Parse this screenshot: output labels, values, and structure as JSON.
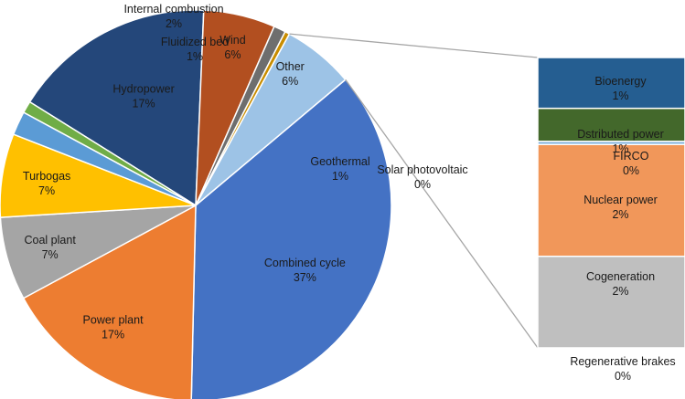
{
  "chart_data": {
    "type": "pie",
    "subtype": "bar-of-pie",
    "main_slices": [
      {
        "label": "Hydropower",
        "pct_label": "17%",
        "value": 17,
        "color": "#24477a",
        "text_color": "#1a1a1a"
      },
      {
        "label": "Wind",
        "pct_label": "6%",
        "value": 6,
        "color": "#b24f20",
        "text_color": "#1a1a1a"
      },
      {
        "label": "Geothermal",
        "pct_label": "1%",
        "value": 1,
        "color": "#6e6e6e",
        "text_color": "#1a1a1a"
      },
      {
        "label": "Solar photovoltaic",
        "pct_label": "0%",
        "value": 0.4,
        "color": "#c98d00",
        "text_color": "#1a1a1a"
      },
      {
        "label": "Other",
        "pct_label": "6%",
        "value": 6,
        "color": "#9dc3e6",
        "text_color": "#1a1a1a"
      },
      {
        "label": "Combined cycle",
        "pct_label": "37%",
        "value": 37,
        "color": "#4472c4",
        "text_color": "#1a1a1a"
      },
      {
        "label": "Power plant",
        "pct_label": "17%",
        "value": 17,
        "color": "#ed7d31",
        "text_color": "#1a1a1a"
      },
      {
        "label": "Coal plant",
        "pct_label": "7%",
        "value": 7,
        "color": "#a5a5a5",
        "text_color": "#1a1a1a"
      },
      {
        "label": "Turbogas",
        "pct_label": "7%",
        "value": 7,
        "color": "#ffc000",
        "text_color": "#1a1a1a"
      },
      {
        "label": "Internal combustion",
        "pct_label": "2%",
        "value": 2,
        "color": "#5b9bd5",
        "text_color": "#1a1a1a"
      },
      {
        "label": "Fluidized bed",
        "pct_label": "1%",
        "value": 1,
        "color": "#70ad47",
        "text_color": "#1a1a1a"
      }
    ],
    "bar_segments": [
      {
        "label": "Bioenergy",
        "pct_label": "1%",
        "value": 1.0,
        "color": "#255e91"
      },
      {
        "label": "Dstributed power",
        "pct_label": "1%",
        "value": 0.65,
        "color": "#43682b"
      },
      {
        "label": "FIRCO",
        "pct_label": "0%",
        "value": 0.06,
        "color": "#7cafdd"
      },
      {
        "label": "Nuclear power",
        "pct_label": "2%",
        "value": 2.2,
        "color": "#f1975a"
      },
      {
        "label": "Cogeneration",
        "pct_label": "2%",
        "value": 1.8,
        "color": "#bfbfbf"
      },
      {
        "label": "Regenerative brakes",
        "pct_label": "0%",
        "value": 0.0,
        "color": "#d9d9d9"
      }
    ],
    "title": "",
    "legend": "none",
    "connector_color": "#a6a6a6"
  }
}
